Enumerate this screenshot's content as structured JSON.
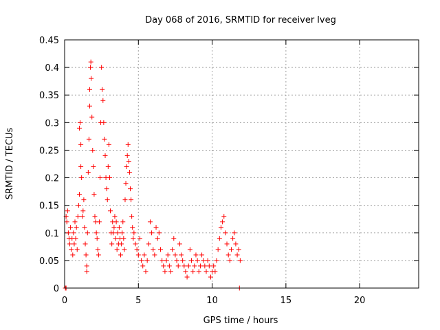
{
  "chart_data": {
    "type": "scatter",
    "title": "Day 068 of 2016, SRMTID for receiver lveg",
    "xlabel": "GPS time / hours",
    "ylabel": "SRMTID / TECUs",
    "xlim": [
      0,
      24
    ],
    "ylim": [
      0,
      0.45
    ],
    "xticks": [
      0,
      5,
      10,
      15,
      20
    ],
    "xtick_labels": [
      "0",
      "5",
      "10",
      "15",
      "20"
    ],
    "yticks": [
      0,
      0.05,
      0.1,
      0.15,
      0.2,
      0.25,
      0.3,
      0.35,
      0.4,
      0.45
    ],
    "ytick_labels": [
      "0",
      "0.05",
      "0.1",
      "0.15",
      "0.2",
      "0.25",
      "0.3",
      "0.35",
      "0.4",
      "0.45"
    ],
    "grid": true,
    "marker": "+",
    "color": "#ff0000",
    "series": [
      {
        "points": [
          [
            0.05,
            0.0
          ],
          [
            0.1,
            0.0
          ],
          [
            0.1,
            0.13
          ],
          [
            0.15,
            0.12
          ],
          [
            0.2,
            0.14
          ],
          [
            0.25,
            0.1
          ],
          [
            0.3,
            0.09
          ],
          [
            0.35,
            0.08
          ],
          [
            0.4,
            0.11
          ],
          [
            0.45,
            0.07
          ],
          [
            0.5,
            0.09
          ],
          [
            0.55,
            0.06
          ],
          [
            0.6,
            0.1
          ],
          [
            0.65,
            0.08
          ],
          [
            0.7,
            0.12
          ],
          [
            0.75,
            0.09
          ],
          [
            0.8,
            0.11
          ],
          [
            0.85,
            0.07
          ],
          [
            0.9,
            0.13
          ],
          [
            0.95,
            0.15
          ],
          [
            1.0,
            0.17
          ],
          [
            1.0,
            0.29
          ],
          [
            1.05,
            0.3
          ],
          [
            1.1,
            0.26
          ],
          [
            1.1,
            0.22
          ],
          [
            1.15,
            0.2
          ],
          [
            1.2,
            0.13
          ],
          [
            1.25,
            0.14
          ],
          [
            1.3,
            0.16
          ],
          [
            1.35,
            0.11
          ],
          [
            1.4,
            0.08
          ],
          [
            1.45,
            0.06
          ],
          [
            1.5,
            0.04
          ],
          [
            1.5,
            0.03
          ],
          [
            1.55,
            0.1
          ],
          [
            1.6,
            0.21
          ],
          [
            1.65,
            0.27
          ],
          [
            1.7,
            0.33
          ],
          [
            1.7,
            0.36
          ],
          [
            1.75,
            0.4
          ],
          [
            1.78,
            0.41
          ],
          [
            1.8,
            0.38
          ],
          [
            1.85,
            0.31
          ],
          [
            1.9,
            0.25
          ],
          [
            1.95,
            0.22
          ],
          [
            2.0,
            0.17
          ],
          [
            2.05,
            0.13
          ],
          [
            2.1,
            0.12
          ],
          [
            2.15,
            0.1
          ],
          [
            2.2,
            0.09
          ],
          [
            2.25,
            0.07
          ],
          [
            2.3,
            0.06
          ],
          [
            2.35,
            0.12
          ],
          [
            2.4,
            0.2
          ],
          [
            2.45,
            0.3
          ],
          [
            2.5,
            0.4
          ],
          [
            2.55,
            0.36
          ],
          [
            2.6,
            0.34
          ],
          [
            2.65,
            0.3
          ],
          [
            2.7,
            0.27
          ],
          [
            2.75,
            0.24
          ],
          [
            2.8,
            0.2
          ],
          [
            2.85,
            0.18
          ],
          [
            2.9,
            0.16
          ],
          [
            2.95,
            0.22
          ],
          [
            3.0,
            0.26
          ],
          [
            3.05,
            0.2
          ],
          [
            3.1,
            0.14
          ],
          [
            3.15,
            0.1
          ],
          [
            3.2,
            0.08
          ],
          [
            3.25,
            0.12
          ],
          [
            3.3,
            0.1
          ],
          [
            3.35,
            0.11
          ],
          [
            3.4,
            0.13
          ],
          [
            3.45,
            0.09
          ],
          [
            3.5,
            0.12
          ],
          [
            3.55,
            0.07
          ],
          [
            3.6,
            0.1
          ],
          [
            3.65,
            0.08
          ],
          [
            3.7,
            0.11
          ],
          [
            3.75,
            0.09
          ],
          [
            3.8,
            0.06
          ],
          [
            3.85,
            0.08
          ],
          [
            3.9,
            0.1
          ],
          [
            3.95,
            0.12
          ],
          [
            4.0,
            0.09
          ],
          [
            4.05,
            0.07
          ],
          [
            4.1,
            0.16
          ],
          [
            4.15,
            0.19
          ],
          [
            4.2,
            0.22
          ],
          [
            4.25,
            0.24
          ],
          [
            4.3,
            0.26
          ],
          [
            4.35,
            0.23
          ],
          [
            4.4,
            0.21
          ],
          [
            4.45,
            0.18
          ],
          [
            4.5,
            0.16
          ],
          [
            4.55,
            0.13
          ],
          [
            4.6,
            0.11
          ],
          [
            4.65,
            0.09
          ],
          [
            4.7,
            0.1
          ],
          [
            4.8,
            0.08
          ],
          [
            4.9,
            0.07
          ],
          [
            5.0,
            0.06
          ],
          [
            5.1,
            0.09
          ],
          [
            5.2,
            0.05
          ],
          [
            5.3,
            0.04
          ],
          [
            5.4,
            0.06
          ],
          [
            5.5,
            0.03
          ],
          [
            5.6,
            0.05
          ],
          [
            5.7,
            0.08
          ],
          [
            5.8,
            0.12
          ],
          [
            5.9,
            0.1
          ],
          [
            6.0,
            0.07
          ],
          [
            6.1,
            0.06
          ],
          [
            6.2,
            0.11
          ],
          [
            6.3,
            0.09
          ],
          [
            6.4,
            0.1
          ],
          [
            6.5,
            0.07
          ],
          [
            6.6,
            0.05
          ],
          [
            6.7,
            0.04
          ],
          [
            6.8,
            0.03
          ],
          [
            6.9,
            0.05
          ],
          [
            7.0,
            0.06
          ],
          [
            7.1,
            0.04
          ],
          [
            7.2,
            0.03
          ],
          [
            7.3,
            0.07
          ],
          [
            7.4,
            0.09
          ],
          [
            7.5,
            0.06
          ],
          [
            7.6,
            0.05
          ],
          [
            7.7,
            0.04
          ],
          [
            7.8,
            0.08
          ],
          [
            7.9,
            0.06
          ],
          [
            8.0,
            0.05
          ],
          [
            8.1,
            0.04
          ],
          [
            8.2,
            0.03
          ],
          [
            8.3,
            0.02
          ],
          [
            8.4,
            0.04
          ],
          [
            8.5,
            0.07
          ],
          [
            8.6,
            0.05
          ],
          [
            8.7,
            0.03
          ],
          [
            8.8,
            0.04
          ],
          [
            8.9,
            0.06
          ],
          [
            9.0,
            0.05
          ],
          [
            9.1,
            0.03
          ],
          [
            9.2,
            0.04
          ],
          [
            9.3,
            0.06
          ],
          [
            9.4,
            0.05
          ],
          [
            9.5,
            0.04
          ],
          [
            9.6,
            0.03
          ],
          [
            9.7,
            0.05
          ],
          [
            9.8,
            0.04
          ],
          [
            9.9,
            0.02
          ],
          [
            10.0,
            0.03
          ],
          [
            10.1,
            0.04
          ],
          [
            10.2,
            0.03
          ],
          [
            10.3,
            0.05
          ],
          [
            10.4,
            0.07
          ],
          [
            10.5,
            0.09
          ],
          [
            10.6,
            0.11
          ],
          [
            10.7,
            0.12
          ],
          [
            10.8,
            0.13
          ],
          [
            10.9,
            0.1
          ],
          [
            11.0,
            0.08
          ],
          [
            11.1,
            0.06
          ],
          [
            11.2,
            0.05
          ],
          [
            11.3,
            0.07
          ],
          [
            11.4,
            0.09
          ],
          [
            11.5,
            0.1
          ],
          [
            11.6,
            0.08
          ],
          [
            11.7,
            0.06
          ],
          [
            11.8,
            0.07
          ],
          [
            11.9,
            0.05
          ],
          [
            11.85,
            0.0
          ]
        ]
      }
    ]
  }
}
